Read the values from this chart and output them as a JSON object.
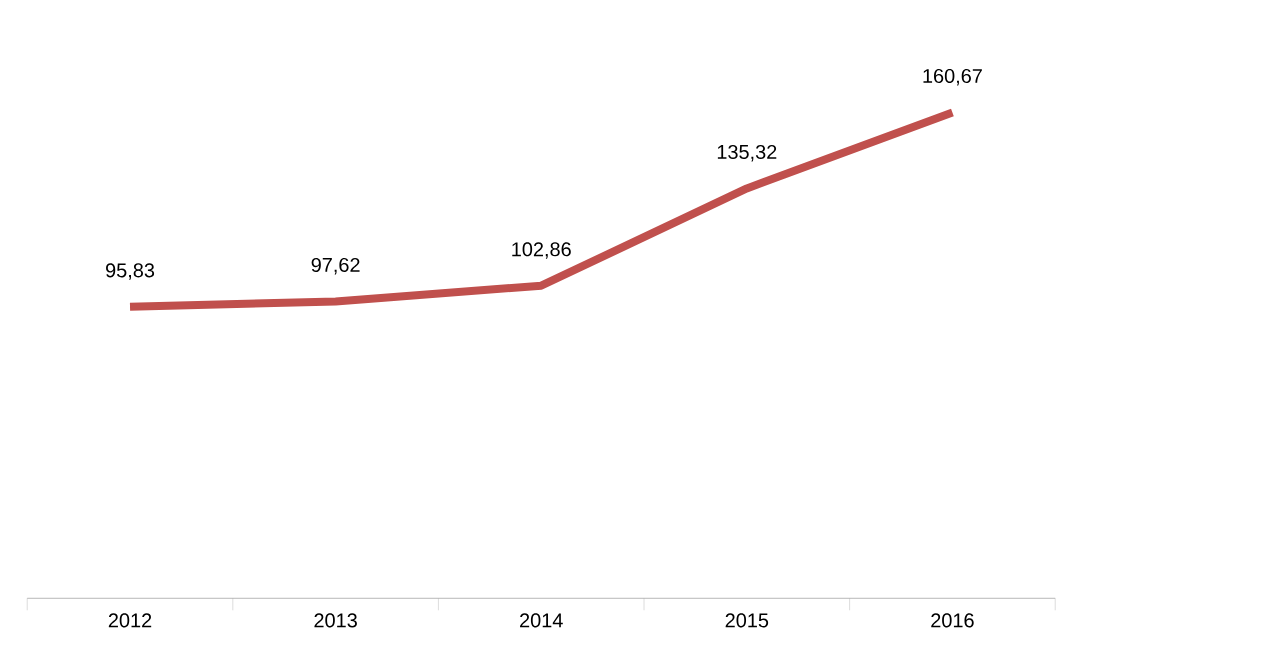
{
  "chart_data": {
    "type": "line",
    "categories": [
      "2012",
      "2013",
      "2014",
      "2015",
      "2016"
    ],
    "series": [
      {
        "color": "#c0504d",
        "values": [
          95.83,
          97.62,
          102.86,
          135.32,
          160.67
        ],
        "value_labels": [
          "95,83",
          "97,62",
          "102,86",
          "135,32",
          "160,67"
        ]
      }
    ],
    "marker": "none",
    "line_style": "solid",
    "grid": false
  }
}
